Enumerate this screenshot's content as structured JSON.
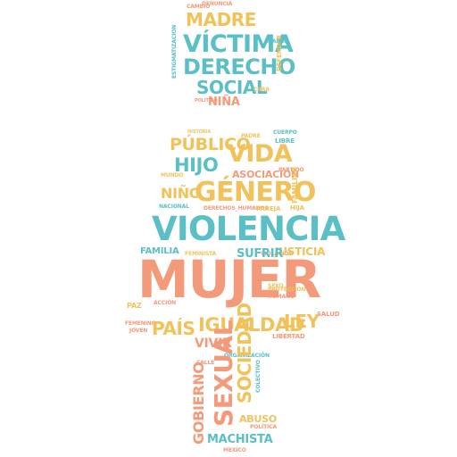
{
  "title": "Word cloud: mujer",
  "colors": {
    "salmon": "#f39a7a",
    "teal": "#5bbfc6",
    "yellow": "#f2c25a"
  },
  "head": {
    "madre": "MADRE",
    "victima": "VÍCTIMA",
    "derecho": "DERECHO",
    "social": "SOCIAL",
    "nina": "NIÑA",
    "denuncia": "DENUNCIA",
    "cambio": "CAMBIO",
    "politico": "POLITICO",
    "estigmatizacion": "ESTIGMATIZACION",
    "defender": "DEFENDER",
    "maria": "MARIA",
    "cara": "CARA"
  },
  "body": {
    "publico": "PÚBLICO",
    "vida": "VIDA",
    "hijo": "HIJO",
    "asociacion": "ASOCIACIÓN",
    "genero": "GÉNERO",
    "nino": "NIÑO",
    "familiar": "FAMILIAR",
    "derechos_humanos": "DERECHOS_HUMANOS",
    "pareja": "PAREJA",
    "hija": "HIJA",
    "libre": "LIBRE",
    "cuerpo": "CUERPO",
    "padre": "PADRE",
    "partido": "PARTIDO",
    "mundo": "MUNDO",
    "nacional": "NACIONAL",
    "historia": "HISTORIA",
    "violencia": "VIOLENCIA",
    "familia": "FAMILIA",
    "justicia": "JUSTICIA",
    "feminista": "FEMINISTA",
    "violacion": "VIOLACIÓN",
    "sufrir": "SUFRIR",
    "mujer": "MUJER",
    "pais": "PAÍS",
    "igualdad": "IGUALDAD",
    "ley": "LEY",
    "vivir": "VIVIR",
    "libertad": "LIBERTAD",
    "salud": "SALUD",
    "paz": "PAZ",
    "joven": "JOVEN",
    "femenino": "FEMENINO",
    "proteccion": "PROTECCIÓN",
    "humano": "HUMANO",
    "sexo": "SEXO",
    "accion": "ACCIÓN"
  },
  "legs": {
    "sexual": "SEXUAL",
    "sociedad": "SOCIEDAD",
    "gobierno": "GOBIERNO",
    "abuso": "ABUSO",
    "machista": "MACHISTA",
    "politica": "POLÍTICA",
    "mexico": "MEXICO",
    "organizacion": "ORGANIZACIÓN",
    "colectivo": "COLECTIVO",
    "calle": "CALLE"
  }
}
